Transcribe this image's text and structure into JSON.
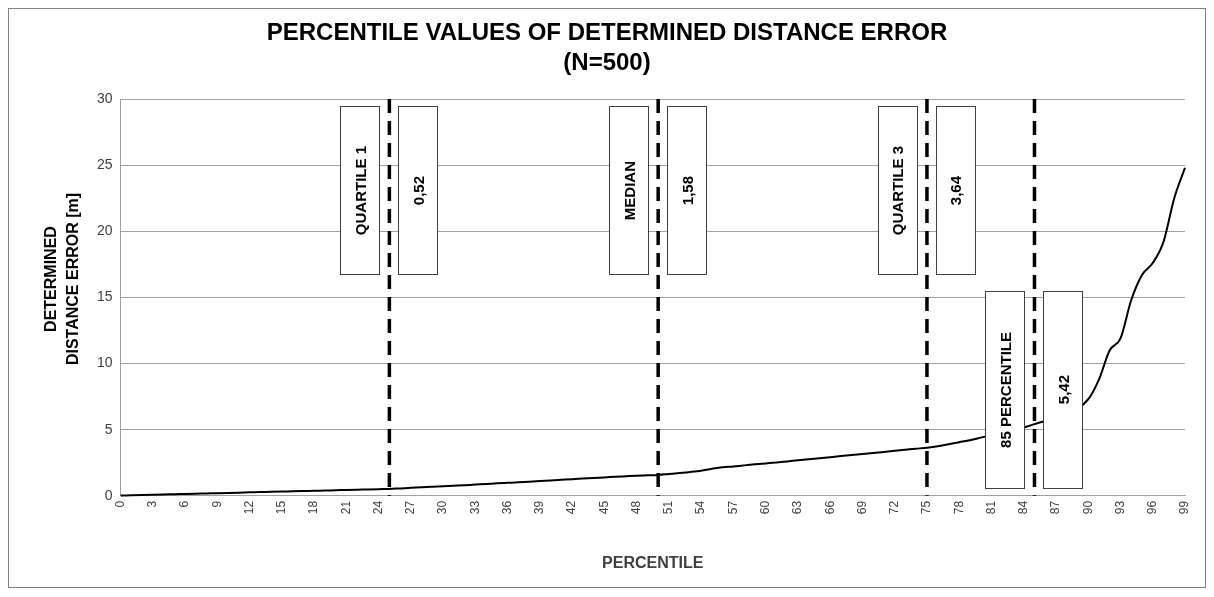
{
  "chart_data": {
    "type": "line",
    "title": "PERCENTILE VALUES OF DETERMINED DISTANCE ERROR (N=500)",
    "xlabel": "PERCENTILE",
    "ylabel": "DETERMINED DISTANCE ERROR [m]",
    "x": [
      0,
      1,
      2,
      3,
      4,
      5,
      6,
      7,
      8,
      9,
      10,
      11,
      12,
      13,
      14,
      15,
      16,
      17,
      18,
      19,
      20,
      21,
      22,
      23,
      24,
      25,
      26,
      27,
      28,
      29,
      30,
      31,
      32,
      33,
      34,
      35,
      36,
      37,
      38,
      39,
      40,
      41,
      42,
      43,
      44,
      45,
      46,
      47,
      48,
      49,
      50,
      51,
      52,
      53,
      54,
      55,
      56,
      57,
      58,
      59,
      60,
      61,
      62,
      63,
      64,
      65,
      66,
      67,
      68,
      69,
      70,
      71,
      72,
      73,
      74,
      75,
      76,
      77,
      78,
      79,
      80,
      81,
      82,
      83,
      84,
      85,
      86,
      87,
      88,
      89,
      90,
      91,
      92,
      93,
      94,
      95,
      96,
      97,
      98,
      99
    ],
    "series": [
      {
        "color": "#000000",
        "values": [
          0.02,
          0.04,
          0.06,
          0.08,
          0.1,
          0.12,
          0.14,
          0.16,
          0.18,
          0.2,
          0.22,
          0.24,
          0.26,
          0.28,
          0.3,
          0.32,
          0.34,
          0.36,
          0.38,
          0.4,
          0.42,
          0.44,
          0.46,
          0.48,
          0.5,
          0.52,
          0.56,
          0.6,
          0.64,
          0.68,
          0.72,
          0.76,
          0.8,
          0.85,
          0.89,
          0.94,
          0.98,
          1.02,
          1.07,
          1.12,
          1.16,
          1.21,
          1.26,
          1.3,
          1.35,
          1.39,
          1.44,
          1.48,
          1.52,
          1.55,
          1.58,
          1.65,
          1.72,
          1.8,
          1.9,
          2.05,
          2.15,
          2.22,
          2.3,
          2.38,
          2.45,
          2.52,
          2.6,
          2.68,
          2.76,
          2.84,
          2.92,
          3.0,
          3.08,
          3.16,
          3.24,
          3.32,
          3.4,
          3.48,
          3.56,
          3.64,
          3.75,
          3.9,
          4.05,
          4.2,
          4.4,
          null,
          null,
          null,
          null,
          5.42,
          null,
          null,
          null,
          null,
          7.3,
          8.8,
          11.0,
          11.9,
          14.8,
          16.7,
          17.6,
          19.2,
          22.5,
          24.8
        ]
      }
    ],
    "xlim": [
      0,
      99
    ],
    "xticks": [
      0,
      3,
      6,
      9,
      12,
      15,
      18,
      21,
      24,
      27,
      30,
      33,
      36,
      39,
      42,
      45,
      48,
      51,
      54,
      57,
      60,
      63,
      66,
      69,
      72,
      75,
      78,
      81,
      84,
      87,
      90,
      93,
      96,
      99
    ],
    "ylim": [
      0,
      30
    ],
    "yticks": [
      0,
      5,
      10,
      15,
      20,
      25,
      30
    ],
    "grid": "y",
    "legend": false,
    "marker": "none",
    "line_style": "solid",
    "ref_lines": [
      {
        "axis": "x",
        "value": 25,
        "label": "QUARTILE 1",
        "color": "#000000",
        "line_style": "dashed"
      },
      {
        "axis": "x",
        "value": 50,
        "label": "MEDIAN",
        "color": "#000000",
        "line_style": "dashed"
      },
      {
        "axis": "x",
        "value": 75,
        "label": "QUARTILE 3",
        "color": "#000000",
        "line_style": "dashed"
      },
      {
        "axis": "x",
        "value": 85,
        "label": "85 PERCENTILE",
        "color": "#000000",
        "line_style": "dashed"
      }
    ],
    "annotations": [
      "0,52",
      "1,58",
      "3,64",
      "5,42"
    ]
  }
}
